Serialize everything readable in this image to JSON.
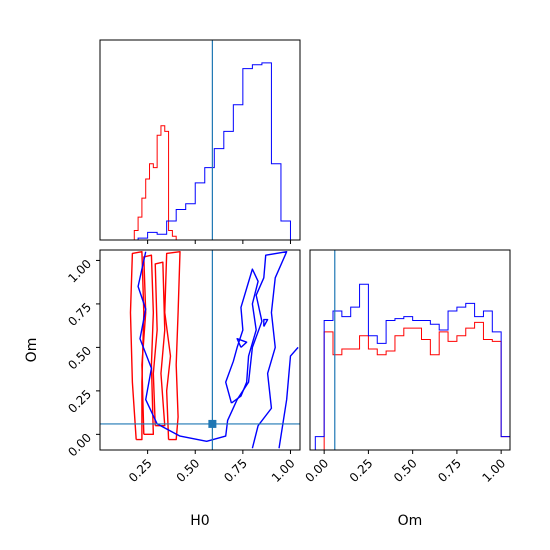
{
  "chart_data": [
    {
      "id": "h0-hist",
      "type": "histogram",
      "title": "",
      "xlabel": "",
      "ylabel": "",
      "xlim": [
        0.0,
        1.05
      ],
      "ylim": [
        0,
        1.05
      ],
      "grid": false,
      "truth_line": 0.59,
      "truth_color": "#1f77b4",
      "series": [
        {
          "color": "#ff0000",
          "bin_edges": [
            0.18,
            0.2,
            0.22,
            0.24,
            0.26,
            0.28,
            0.3,
            0.32,
            0.34,
            0.36,
            0.38,
            0.4
          ],
          "values": [
            0.05,
            0.12,
            0.22,
            0.32,
            0.4,
            0.38,
            0.55,
            0.6,
            0.57,
            0.05,
            0.02
          ]
        },
        {
          "color": "#0000ff",
          "bin_edges": [
            0.2,
            0.25,
            0.3,
            0.35,
            0.4,
            0.45,
            0.5,
            0.55,
            0.6,
            0.65,
            0.7,
            0.75,
            0.8,
            0.85,
            0.9,
            0.95,
            1.0
          ],
          "values": [
            0.01,
            0.04,
            0.03,
            0.1,
            0.16,
            0.19,
            0.3,
            0.38,
            0.48,
            0.57,
            0.71,
            0.9,
            0.92,
            0.93,
            0.4,
            0.1
          ]
        }
      ]
    },
    {
      "id": "joint-contour",
      "type": "contour",
      "title": "",
      "xlabel": "H0",
      "ylabel": "Om",
      "xlim": [
        0.0,
        1.05
      ],
      "ylim": [
        -0.09,
        1.06
      ],
      "xticks": [
        "0.25",
        "0.50",
        "0.75",
        "1.00"
      ],
      "yticks": [
        "0.00",
        "0.25",
        "0.50",
        "0.75",
        "1.00"
      ],
      "grid": false,
      "truth_point": [
        0.59,
        0.06
      ],
      "truth_color": "#1f77b4",
      "series": [
        {
          "color": "#ff0000",
          "contours": [
            [
              [
                0.19,
                -0.03
              ],
              [
                0.17,
                0.3
              ],
              [
                0.16,
                0.7
              ],
              [
                0.17,
                1.04
              ],
              [
                0.22,
                1.05
              ],
              [
                0.23,
                0.7
              ],
              [
                0.22,
                0.3
              ],
              [
                0.22,
                -0.03
              ],
              [
                0.19,
                -0.03
              ]
            ],
            [
              [
                0.36,
                -0.03
              ],
              [
                0.35,
                0.25
              ],
              [
                0.37,
                0.45
              ],
              [
                0.34,
                0.7
              ],
              [
                0.35,
                1.04
              ],
              [
                0.42,
                1.05
              ],
              [
                0.41,
                0.7
              ],
              [
                0.4,
                0.4
              ],
              [
                0.41,
                0.1
              ],
              [
                0.4,
                -0.03
              ],
              [
                0.36,
                -0.03
              ]
            ],
            [
              [
                0.23,
                0.0
              ],
              [
                0.22,
                0.4
              ],
              [
                0.24,
                0.7
              ],
              [
                0.23,
                1.02
              ],
              [
                0.27,
                1.03
              ],
              [
                0.28,
                0.7
              ],
              [
                0.27,
                0.4
              ],
              [
                0.28,
                0.0
              ],
              [
                0.23,
                0.0
              ]
            ],
            [
              [
                0.29,
                0.05
              ],
              [
                0.28,
                0.35
              ],
              [
                0.3,
                0.6
              ],
              [
                0.29,
                0.98
              ],
              [
                0.33,
                0.99
              ],
              [
                0.34,
                0.6
              ],
              [
                0.32,
                0.35
              ],
              [
                0.34,
                0.05
              ],
              [
                0.29,
                0.05
              ]
            ]
          ]
        },
        {
          "color": "#0000ff",
          "contours": [
            [
              [
                0.24,
                1.05
              ],
              [
                0.2,
                0.85
              ],
              [
                0.24,
                0.72
              ],
              [
                0.21,
                0.55
              ],
              [
                0.27,
                0.38
              ],
              [
                0.24,
                0.2
              ],
              [
                0.3,
                0.06
              ],
              [
                0.42,
                -0.01
              ],
              [
                0.56,
                -0.04
              ],
              [
                0.66,
                -0.01
              ],
              [
                0.67,
                0.08
              ],
              [
                0.72,
                0.2
              ],
              [
                0.78,
                0.3
              ],
              [
                0.8,
                0.5
              ],
              [
                0.85,
                0.65
              ],
              [
                0.82,
                0.8
              ],
              [
                0.86,
                0.9
              ],
              [
                0.87,
                1.03
              ],
              [
                0.98,
                1.05
              ],
              [
                0.92,
                0.9
              ],
              [
                0.9,
                0.7
              ],
              [
                0.92,
                0.5
              ],
              [
                0.88,
                0.35
              ],
              [
                0.9,
                0.15
              ],
              [
                0.83,
                0.05
              ],
              [
                0.8,
                -0.08
              ]
            ],
            [
              [
                0.69,
                0.18
              ],
              [
                0.66,
                0.3
              ],
              [
                0.7,
                0.42
              ],
              [
                0.72,
                0.5
              ],
              [
                0.75,
                0.6
              ],
              [
                0.74,
                0.73
              ],
              [
                0.8,
                0.95
              ],
              [
                0.83,
                0.88
              ],
              [
                0.8,
                0.75
              ],
              [
                0.82,
                0.6
              ],
              [
                0.78,
                0.45
              ],
              [
                0.77,
                0.3
              ],
              [
                0.74,
                0.22
              ],
              [
                0.69,
                0.18
              ]
            ],
            [
              [
                0.74,
                0.5
              ],
              [
                0.72,
                0.55
              ],
              [
                0.77,
                0.53
              ],
              [
                0.74,
                0.5
              ]
            ],
            [
              [
                0.86,
                0.62
              ],
              [
                0.88,
                0.66
              ],
              [
                0.86,
                0.66
              ],
              [
                0.86,
                0.62
              ]
            ],
            [
              [
                0.94,
                -0.08
              ],
              [
                0.98,
                0.2
              ],
              [
                1.0,
                0.45
              ],
              [
                1.04,
                0.5
              ]
            ]
          ]
        }
      ]
    },
    {
      "id": "om-hist",
      "type": "histogram",
      "title": "",
      "xlabel": "Om",
      "ylabel": "",
      "xlim": [
        -0.08,
        1.05
      ],
      "ylim": [
        0,
        1.05
      ],
      "xticks": [
        "0.00",
        "0.25",
        "0.50",
        "0.75",
        "1.00"
      ],
      "grid": false,
      "truth_line": 0.06,
      "truth_color": "#1f77b4",
      "series": [
        {
          "color": "#ff0000",
          "bin_edges": [
            -0.05,
            0.0,
            0.05,
            0.1,
            0.15,
            0.2,
            0.25,
            0.3,
            0.35,
            0.4,
            0.45,
            0.5,
            0.55,
            0.6,
            0.65,
            0.7,
            0.75,
            0.8,
            0.85,
            0.9,
            0.95,
            1.0,
            1.05
          ],
          "values": [
            0.0,
            0.62,
            0.5,
            0.53,
            0.53,
            0.6,
            0.53,
            0.5,
            0.52,
            0.6,
            0.64,
            0.64,
            0.58,
            0.5,
            0.62,
            0.57,
            0.6,
            0.64,
            0.67,
            0.58,
            0.57,
            0.07
          ]
        },
        {
          "color": "#0000ff",
          "bin_edges": [
            -0.05,
            0.0,
            0.05,
            0.1,
            0.15,
            0.2,
            0.25,
            0.3,
            0.35,
            0.4,
            0.45,
            0.5,
            0.55,
            0.6,
            0.65,
            0.7,
            0.75,
            0.8,
            0.85,
            0.9,
            0.95,
            1.0,
            1.05
          ],
          "values": [
            0.07,
            0.68,
            0.73,
            0.7,
            0.75,
            0.87,
            0.6,
            0.56,
            0.68,
            0.69,
            0.7,
            0.68,
            0.68,
            0.66,
            0.63,
            0.73,
            0.75,
            0.77,
            0.7,
            0.73,
            0.62,
            0.07
          ]
        }
      ]
    }
  ]
}
